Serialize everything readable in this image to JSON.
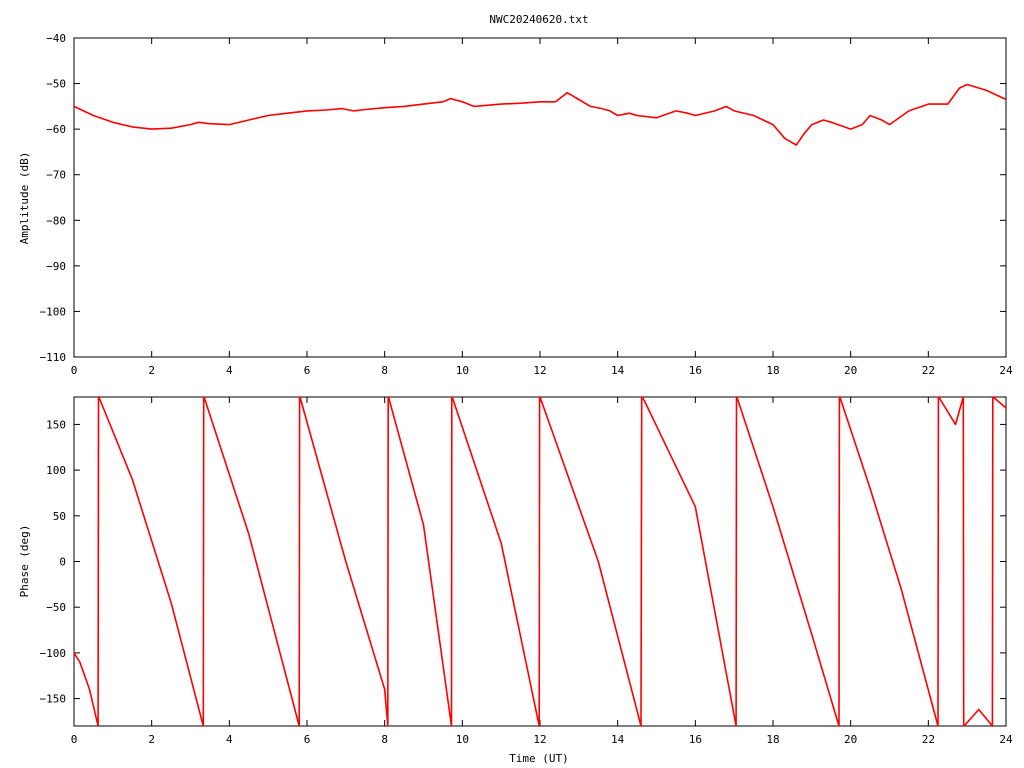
{
  "colors": {
    "series": "#ff0000",
    "axes": "#000000",
    "background": "#ffffff"
  },
  "chart_data": [
    {
      "type": "line",
      "title": "NWC20240620.txt",
      "xlabel": "",
      "ylabel": "Amplitude (dB)",
      "xlim": [
        0,
        24
      ],
      "ylim": [
        -110,
        -40
      ],
      "xticks": [
        0,
        2,
        4,
        6,
        8,
        10,
        12,
        14,
        16,
        18,
        20,
        22,
        24
      ],
      "yticks": [
        -40,
        -50,
        -60,
        -70,
        -80,
        -90,
        -100,
        -110
      ],
      "grid": false,
      "series": [
        {
          "x": [
            0,
            0.5,
            1.0,
            1.5,
            2.0,
            2.5,
            3.0,
            3.2,
            3.5,
            4.0,
            4.5,
            5.0,
            5.5,
            6.0,
            6.5,
            6.9,
            7.2,
            7.5,
            8.0,
            8.5,
            9.0,
            9.5,
            9.7,
            10.0,
            10.3,
            11.0,
            11.5,
            12.0,
            12.4,
            12.7,
            13.0,
            13.3,
            13.6,
            13.8,
            14.0,
            14.3,
            14.5,
            15.0,
            15.5,
            15.8,
            16.0,
            16.5,
            16.8,
            17.0,
            17.5,
            18.0,
            18.3,
            18.6,
            18.8,
            19.0,
            19.3,
            19.5,
            20.0,
            20.3,
            20.5,
            20.8,
            21.0,
            21.5,
            22.0,
            22.5,
            22.8,
            23.0,
            23.5,
            24.0
          ],
          "y": [
            -55,
            -57,
            -58.5,
            -59.5,
            -60,
            -59.8,
            -59,
            -58.5,
            -58.8,
            -59,
            -58,
            -57,
            -56.5,
            -56,
            -55.8,
            -55.5,
            -56,
            -55.7,
            -55.3,
            -55,
            -54.5,
            -54,
            -53.3,
            -54,
            -55,
            -54.5,
            -54.3,
            -54,
            -54,
            -52,
            -53.5,
            -55,
            -55.5,
            -56,
            -57,
            -56.5,
            -57,
            -57.5,
            -56,
            -56.5,
            -57,
            -56,
            -55,
            -56,
            -57,
            -59,
            -62,
            -63.5,
            -61,
            -59,
            -58,
            -58.5,
            -60,
            -59,
            -57,
            -58,
            -59,
            -56,
            -54.5,
            -54.5,
            -51,
            -50.2,
            -51.5,
            -53.5
          ]
        }
      ]
    },
    {
      "type": "line",
      "title": "",
      "xlabel": "Time (UT)",
      "ylabel": "Phase (deg)",
      "xlim": [
        0,
        24
      ],
      "ylim": [
        -180,
        180
      ],
      "xticks": [
        0,
        2,
        4,
        6,
        8,
        10,
        12,
        14,
        16,
        18,
        20,
        22,
        24
      ],
      "yticks": [
        150,
        100,
        50,
        0,
        -50,
        -100,
        -150
      ],
      "grid": false,
      "series": [
        {
          "x": [
            0,
            0.15,
            0.4,
            0.62,
            0.63,
            0.64,
            1.5,
            2.5,
            3.33,
            3.34,
            3.35,
            4.5,
            5.8,
            5.81,
            5.82,
            7.0,
            8.0,
            8.08,
            8.09,
            8.1,
            9.0,
            9.72,
            9.73,
            9.74,
            11.0,
            11.98,
            11.99,
            12.0,
            13.5,
            14.6,
            14.62,
            14.63,
            14.7,
            16.0,
            17.05,
            17.06,
            17.07,
            18.0,
            19.0,
            19.7,
            19.71,
            19.72,
            19.8,
            20.5,
            21.3,
            22.25,
            22.26,
            22.27,
            22.7,
            22.9,
            22.91,
            22.92,
            23.3,
            23.65,
            23.66,
            23.67,
            24.0
          ],
          "y": [
            -100,
            -110,
            -140,
            -180,
            180,
            180,
            90,
            -45,
            -180,
            180,
            180,
            30,
            -180,
            180,
            180,
            0,
            -140,
            -180,
            180,
            180,
            40,
            -180,
            180,
            180,
            20,
            -180,
            180,
            180,
            0,
            -180,
            180,
            180,
            175,
            60,
            -180,
            180,
            180,
            60,
            -80,
            -180,
            180,
            180,
            170,
            80,
            -30,
            -180,
            180,
            180,
            150,
            180,
            -180,
            -180,
            -162,
            -180,
            180,
            180,
            168
          ]
        }
      ]
    }
  ]
}
